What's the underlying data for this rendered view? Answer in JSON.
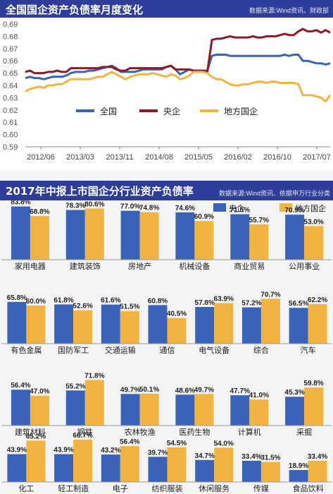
{
  "line_chart": {
    "title": "全国国企资产负债率月度变化",
    "source": "数据来源:Wind资讯、财政部",
    "chart_data": {
      "type": "line",
      "x_ticks": [
        "2012/06",
        "2013/03",
        "2013/11",
        "2014/08",
        "2015/05",
        "2016/02",
        "2016/10",
        "2017/07"
      ],
      "y_ticks": [
        "0.69",
        "0.68",
        "0.67",
        "0.66",
        "0.65",
        "0.64",
        "0.63",
        "0.62",
        "0.61",
        "0.60",
        "0.59"
      ],
      "ylim": [
        0.59,
        0.69
      ],
      "grid": false,
      "legend": "bottom",
      "series": [
        {
          "name": "全国",
          "color": "#3a63b8",
          "values": [
            0.646,
            0.647,
            0.646,
            0.646,
            0.645,
            0.646,
            0.647,
            0.647,
            0.647,
            0.648,
            0.65,
            0.651,
            0.651,
            0.651,
            0.652,
            0.652,
            0.653,
            0.654,
            0.655,
            0.656,
            0.654,
            0.651,
            0.651,
            0.651,
            0.651,
            0.652,
            0.653,
            0.653,
            0.653,
            0.653,
            0.653,
            0.655,
            0.656,
            0.653,
            0.649,
            0.651,
            0.653,
            0.652,
            0.652,
            0.652,
            0.652,
            0.664,
            0.665,
            0.665,
            0.665,
            0.664,
            0.664,
            0.664,
            0.664,
            0.664,
            0.664,
            0.664,
            0.664,
            0.664,
            0.664,
            0.664,
            0.664,
            0.665,
            0.664,
            0.665,
            0.665,
            0.66,
            0.66,
            0.659,
            0.658,
            0.658,
            0.657,
            0.658
          ]
        },
        {
          "name": "央企",
          "color": "#8e1a24",
          "values": [
            0.651,
            0.652,
            0.65,
            0.65,
            0.65,
            0.651,
            0.651,
            0.652,
            0.651,
            0.651,
            0.654,
            0.654,
            0.654,
            0.654,
            0.654,
            0.654,
            0.654,
            0.655,
            0.655,
            0.655,
            0.653,
            0.652,
            0.652,
            0.654,
            0.654,
            0.654,
            0.654,
            0.654,
            0.654,
            0.654,
            0.654,
            0.655,
            0.656,
            0.653,
            0.653,
            0.653,
            0.653,
            0.652,
            0.652,
            0.652,
            0.651,
            0.677,
            0.678,
            0.678,
            0.679,
            0.68,
            0.679,
            0.679,
            0.679,
            0.679,
            0.68,
            0.679,
            0.679,
            0.68,
            0.68,
            0.68,
            0.681,
            0.682,
            0.681,
            0.681,
            0.684,
            0.686,
            0.684,
            0.684,
            0.685,
            0.683,
            0.685,
            0.683
          ]
        },
        {
          "name": "地方国企",
          "color": "#f2b441",
          "values": [
            0.635,
            0.637,
            0.638,
            0.639,
            0.638,
            0.64,
            0.64,
            0.641,
            0.641,
            0.643,
            0.645,
            0.645,
            0.645,
            0.645,
            0.645,
            0.646,
            0.647,
            0.647,
            0.649,
            0.651,
            0.649,
            0.647,
            0.645,
            0.647,
            0.648,
            0.649,
            0.649,
            0.649,
            0.65,
            0.649,
            0.648,
            0.647,
            0.649,
            0.648,
            0.645,
            0.646,
            0.648,
            0.651,
            0.651,
            0.651,
            0.65,
            0.647,
            0.645,
            0.645,
            0.643,
            0.641,
            0.64,
            0.64,
            0.641,
            0.641,
            0.642,
            0.643,
            0.643,
            0.642,
            0.643,
            0.643,
            0.642,
            0.642,
            0.642,
            0.642,
            0.641,
            0.632,
            0.632,
            0.632,
            0.631,
            0.63,
            0.627,
            0.632
          ]
        }
      ]
    }
  },
  "bar_chart": {
    "title": "2017年中报上市国企分行业资产负债率",
    "source": "数据来源:Wind资讯、依据申万行业分类",
    "chart_data": {
      "type": "bar",
      "ylim": [
        0,
        100
      ],
      "legend": "top-right",
      "series": [
        {
          "name": "央企",
          "color": "#3a63b8"
        },
        {
          "name": "地方国企",
          "color": "#f2b441"
        }
      ],
      "rows": [
        [
          {
            "category": "家用电器",
            "central": 83.8,
            "local": 68.8,
            "central_label": "83.8%",
            "local_label": "68.8%"
          },
          {
            "category": "建筑装饰",
            "central": 78.3,
            "local": 80.6,
            "central_label": "78.3%",
            "local_label": "80.6%"
          },
          {
            "category": "房地产",
            "central": 77.0,
            "local": 74.8,
            "central_label": "77.0%",
            "local_label": "74.8%"
          },
          {
            "category": "机械设备",
            "central": 74.6,
            "local": 60.9,
            "central_label": "74.6%",
            "local_label": "60.9%"
          },
          {
            "category": "商业贸易",
            "central": 71.5,
            "local": 55.7,
            "central_label": "71.5%",
            "local_label": "55.7%"
          },
          {
            "category": "公用事业",
            "central": 70.9,
            "local": 53.0,
            "central_label": "70.9%",
            "local_label": "53.0%"
          }
        ],
        [
          {
            "category": "有色金属",
            "central": 65.8,
            "local": 60.0,
            "central_label": "65.8%",
            "local_label": "60.0%"
          },
          {
            "category": "国防军工",
            "central": 61.8,
            "local": 52.6,
            "central_label": "61.8%",
            "local_label": "52.6%"
          },
          {
            "category": "交通运输",
            "central": 61.6,
            "local": 51.5,
            "central_label": "61.6%",
            "local_label": "51.5%"
          },
          {
            "category": "通信",
            "central": 60.8,
            "local": 40.5,
            "central_label": "60.8%",
            "local_label": "40.5%"
          },
          {
            "category": "电气设备",
            "central": 57.8,
            "local": 63.9,
            "central_label": "57.8%",
            "local_label": "63.9%"
          },
          {
            "category": "综合",
            "central": 57.2,
            "local": 70.7,
            "central_label": "57.2%",
            "local_label": "70.7%"
          },
          {
            "category": "汽车",
            "central": 56.5,
            "local": 62.2,
            "central_label": "56.5%",
            "local_label": "62.2%"
          }
        ],
        [
          {
            "category": "建筑材料",
            "central": 56.4,
            "local": 47.0,
            "central_label": "56.4%",
            "local_label": "47.0%"
          },
          {
            "category": "钢铁",
            "central": 55.2,
            "local": 71.8,
            "central_label": "55.2%",
            "local_label": "71.8%"
          },
          {
            "category": "农林牧渔",
            "central": 49.7,
            "local": 50.1,
            "central_label": "49.7%",
            "local_label": "50.1%"
          },
          {
            "category": "医药生物",
            "central": 48.6,
            "local": 49.7,
            "central_label": "48.6%",
            "local_label": "49.7%"
          },
          {
            "category": "计算机",
            "central": 47.7,
            "local": 41.0,
            "central_label": "47.7%",
            "local_label": "41.0%"
          },
          {
            "category": "采掘",
            "central": 45.3,
            "local": 59.8,
            "central_label": "45.3%",
            "local_label": "59.8%"
          }
        ],
        [
          {
            "category": "化工",
            "central": 43.9,
            "local": 65.2,
            "central_label": "43.9%",
            "local_label": "65.2%"
          },
          {
            "category": "轻工制造",
            "central": 43.9,
            "local": 66.7,
            "central_label": "43.9%",
            "local_label": "66.7%"
          },
          {
            "category": "电子",
            "central": 43.2,
            "local": 56.4,
            "central_label": "43.2%",
            "local_label": "56.4%"
          },
          {
            "category": "纺织服装",
            "central": 39.7,
            "local": 54.5,
            "central_label": "39.7%",
            "local_label": "54.5%"
          },
          {
            "category": "休闲服务",
            "central": 34.7,
            "local": 54.0,
            "central_label": "34.7%",
            "local_label": "54.0%"
          },
          {
            "category": "传媒",
            "central": 33.4,
            "local": 31.5,
            "central_label": "33.4%",
            "local_label": "31.5%"
          },
          {
            "category": "食品饮料",
            "central": 18.9,
            "local": 33.4,
            "central_label": "18.9%",
            "local_label": "33.4%"
          }
        ]
      ]
    }
  }
}
